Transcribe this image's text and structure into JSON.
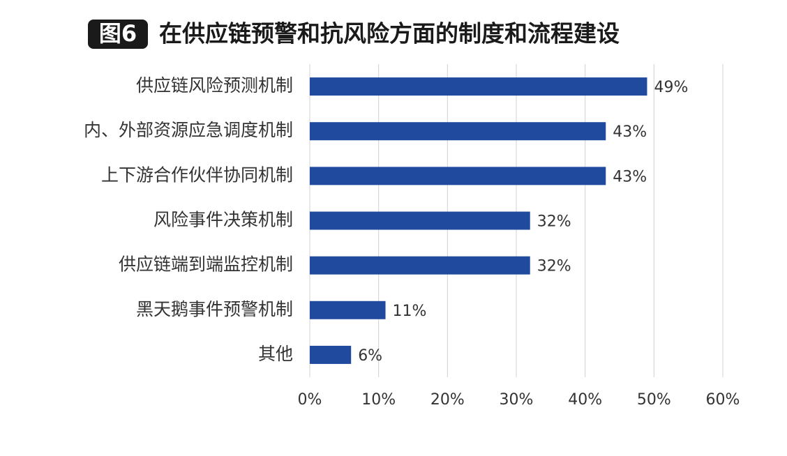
{
  "chart_data": {
    "type": "hbar",
    "badge": "图6",
    "title": "在供应链预警和抗风险方面的制度和流程建设",
    "categories": [
      "供应链风险预测机制",
      "内、外部资源应急调度机制",
      "上下游合作伙伴协同机制",
      "风险事件决策机制",
      "供应链端到端监控机制",
      "黑天鹅事件预警机制",
      "其他"
    ],
    "values": [
      49,
      43,
      43,
      32,
      32,
      11,
      6
    ],
    "value_labels": [
      "49%",
      "43%",
      "43%",
      "32%",
      "32%",
      "11%",
      "6%"
    ],
    "color": "#1f4a9e",
    "xlim": [
      0,
      60
    ],
    "xticks": [
      {
        "value": 0,
        "label": "0%"
      },
      {
        "value": 10,
        "label": "10%"
      },
      {
        "value": 20,
        "label": "20%"
      },
      {
        "value": 30,
        "label": "30%"
      },
      {
        "value": 40,
        "label": "40%"
      },
      {
        "value": 50,
        "label": "50%"
      },
      {
        "value": 60,
        "label": "60%"
      }
    ],
    "grid": true
  }
}
